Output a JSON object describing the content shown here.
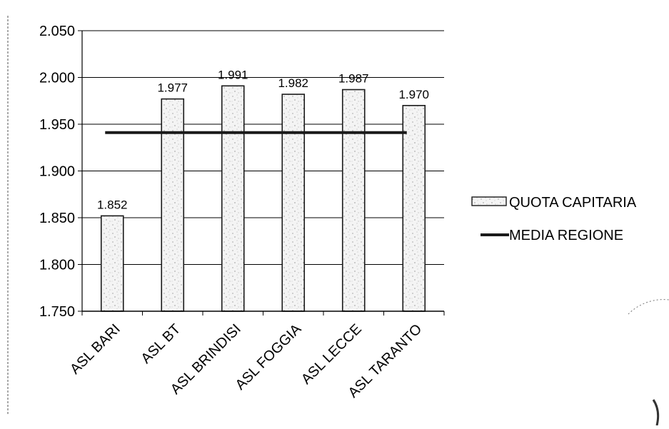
{
  "chart_data": {
    "type": "bar",
    "categories": [
      "ASL BARI",
      "ASL BT",
      "ASL BRINDISI",
      "ASL FOGGIA",
      "ASL LECCE",
      "ASL TARANTO"
    ],
    "series": [
      {
        "name": "QUOTA CAPITARIA",
        "type": "bar",
        "values": [
          1852,
          1977,
          1991,
          1982,
          1987,
          1970
        ],
        "labels": [
          "1.852",
          "1.977",
          "1.991",
          "1.982",
          "1.987",
          "1.970"
        ]
      },
      {
        "name": "MEDIA REGIONE",
        "type": "line",
        "values": [
          1941,
          1941,
          1941,
          1941,
          1941,
          1941
        ]
      }
    ],
    "ylim": [
      1750,
      2050
    ],
    "yticks": [
      1750,
      1800,
      1850,
      1900,
      1950,
      2000,
      2050
    ],
    "ytick_labels": [
      "1.750",
      "1.800",
      "1.850",
      "1.900",
      "1.950",
      "2.000",
      "2.050"
    ],
    "grid": true,
    "legend_position": "right",
    "colors": {
      "bar_fill": "#f4f4f4",
      "bar_speckle": "#888888",
      "bar_stroke": "#1a1a1a",
      "line": "#1a1a1a",
      "grid": "#000000"
    }
  }
}
